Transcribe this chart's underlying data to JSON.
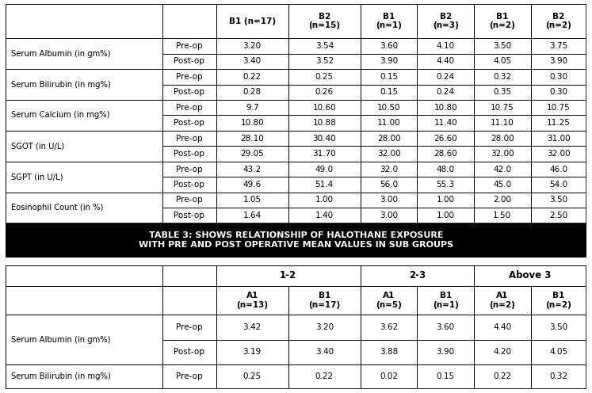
{
  "title_line1": "TABLE 3: SHOWS RELATIONSHIP OF HALOTHANE EXPOSURE",
  "title_line2": "WITH PRE AND POST OPERATIVE MEAN VALUES IN SUB GROUPS",
  "top_header": [
    "",
    "",
    "B1 (n=17)",
    "B2\n(n=15)",
    "B1\n(n=1)",
    "B2\n(n=3)",
    "B1\n(n=2)",
    "B2\n(n=2)"
  ],
  "rows": [
    [
      "Serum Albumin (in gm%)",
      "Pre-op",
      "3.20",
      "3.54",
      "3.60",
      "4.10",
      "3.50",
      "3.75"
    ],
    [
      "Serum Albumin (in gm%)",
      "Post-op",
      "3.40",
      "3.52",
      "3.90",
      "4.40",
      "4.05",
      "3.90"
    ],
    [
      "Serum Bilirubin (in mg%)",
      "Pre-op",
      "0.22",
      "0.25",
      "0.15",
      "0.24",
      "0.32",
      "0.30"
    ],
    [
      "Serum Bilirubin (in mg%)",
      "Post-op",
      "0.28",
      "0.26",
      "0.15",
      "0.24",
      "0.35",
      "0.30"
    ],
    [
      "Serum Calcium (in mg%)",
      "Pre-op",
      "9.7",
      "10.60",
      "10.50",
      "10.80",
      "10.75",
      "10.75"
    ],
    [
      "Serum Calcium (in mg%)",
      "Post-op",
      "10.80",
      "10.88",
      "11.00",
      "11.40",
      "11.10",
      "11.25"
    ],
    [
      "SGOT (in U/L)",
      "Pre-op",
      "28.10",
      "30.40",
      "28.00",
      "26.60",
      "28.00",
      "31.00"
    ],
    [
      "SGOT (in U/L)",
      "Post-op",
      "29.05",
      "31.70",
      "32.00",
      "28.60",
      "32.00",
      "32.00"
    ],
    [
      "SGPT (in U/L)",
      "Pre-op",
      "43.2",
      "49.0",
      "32.0",
      "48.0",
      "42.0",
      "46.0"
    ],
    [
      "SGPT (in U/L)",
      "Post-op",
      "49.6",
      "51.4",
      "56.0",
      "55.3",
      "45.0",
      "54.0"
    ],
    [
      "Eosinophil Count (in %)",
      "Pre-op",
      "1.05",
      "1.00",
      "3.00",
      "1.00",
      "2.00",
      "3.50"
    ],
    [
      "Eosinophil Count (in %)",
      "Post-op",
      "1.64",
      "1.40",
      "3.00",
      "1.00",
      "1.50",
      "2.50"
    ]
  ],
  "bot_span_labels": [
    "1-2",
    "2-3",
    "Above 3"
  ],
  "bot_header": [
    "",
    "",
    "A1\n(n=13)",
    "B1\n(n=17)",
    "A1\n(n=5)",
    "B1\n(n=1)",
    "A1\n(n=2)",
    "B1\n(n=2)"
  ],
  "rows2": [
    [
      "Serum Albumin (in gm%)",
      "Pre-op",
      "3.42",
      "3.20",
      "3.62",
      "3.60",
      "4.40",
      "3.50"
    ],
    [
      "Serum Albumin (in gm%)",
      "Post-op",
      "3.19",
      "3.40",
      "3.88",
      "3.90",
      "4.20",
      "4.05"
    ],
    [
      "Serum Bilirubin (in mg%)",
      "Pre-op",
      "0.25",
      "0.22",
      "0.02",
      "0.15",
      "0.22",
      "0.32"
    ]
  ],
  "title_bg": "#000000",
  "title_fg": "#ffffff",
  "cell_bg": "#ffffff",
  "border_color": "#000000",
  "text_color": "#000000"
}
